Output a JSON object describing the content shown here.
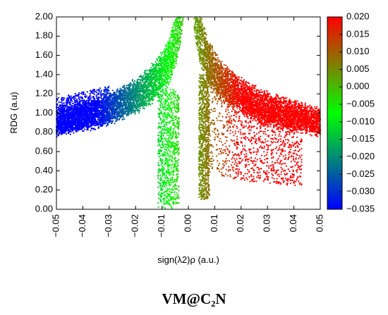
{
  "chart_data": {
    "type": "scatter",
    "title": "",
    "xlabel": "sign(λ2)ρ (a.u.)",
    "ylabel": "RDG (a.u)",
    "xlim": [
      -0.05,
      0.05
    ],
    "ylim": [
      0,
      2
    ],
    "x_ticks": [
      "−0.05",
      "−0.04",
      "−0.03",
      "−0.02",
      "−0.01",
      "0.00",
      "0.01",
      "0.02",
      "0.03",
      "0.04",
      "0.05"
    ],
    "y_ticks": [
      "0.00",
      "0.20",
      "0.40",
      "0.60",
      "0.80",
      "1.00",
      "1.20",
      "1.40",
      "1.60",
      "1.80",
      "2.00"
    ],
    "colorbar": {
      "range": [
        -0.035,
        0.02
      ],
      "ticks": [
        "0.020",
        "0.015",
        "0.010",
        "0.005",
        "0.000",
        "−0.005",
        "−0.010",
        "−0.015",
        "−0.020",
        "−0.025",
        "−0.030",
        "−0.035"
      ],
      "colors": [
        "#0000ff",
        "#00ff00",
        "#ff0000"
      ]
    },
    "grid": false,
    "series": [
      {
        "description_points": [
          [
            -0.05,
            0.92
          ],
          [
            -0.04,
            1.02
          ],
          [
            -0.03,
            1.1
          ],
          [
            -0.02,
            1.22
          ],
          [
            -0.015,
            1.35
          ],
          [
            -0.01,
            1.6
          ],
          [
            -0.007,
            2.0
          ],
          [
            -0.006,
            0.15
          ],
          [
            -0.01,
            0.5
          ],
          [
            -0.012,
            0.75
          ],
          [
            -0.003,
            2.0
          ],
          [
            0.003,
            2.0
          ],
          [
            0.004,
            0.12
          ],
          [
            0.006,
            0.6
          ],
          [
            0.01,
            1.5
          ],
          [
            0.015,
            1.3
          ],
          [
            0.02,
            1.2
          ],
          [
            0.03,
            1.1
          ],
          [
            0.04,
            1.0
          ],
          [
            0.05,
            0.85
          ],
          [
            0.02,
            0.3
          ],
          [
            0.028,
            0.5
          ],
          [
            0.035,
            0.65
          ]
        ]
      }
    ]
  },
  "caption": "VM@C₂N"
}
